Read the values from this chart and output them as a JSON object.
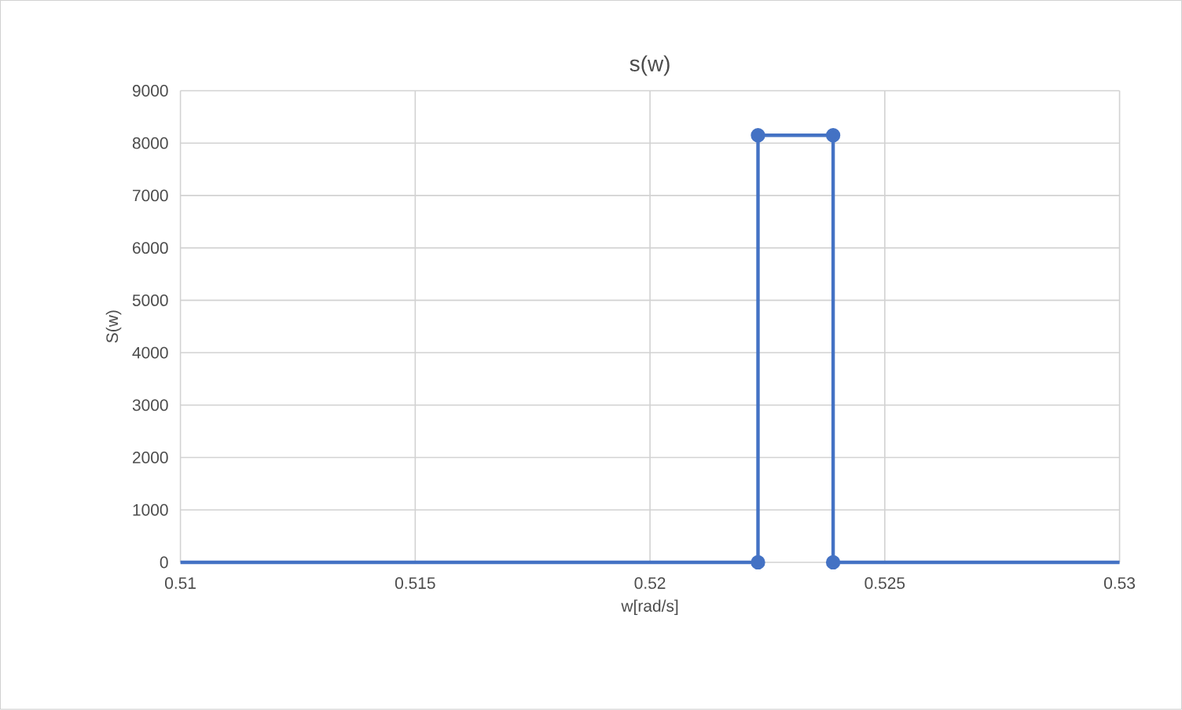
{
  "chart_data": {
    "type": "line",
    "title": "s(w)",
    "xlabel": "w[rad/s]",
    "ylabel": "S(w)",
    "series": [
      {
        "x": [
          0.5223,
          0.5223,
          0.5239,
          0.5239
        ],
        "values": [
          0,
          8150,
          8150,
          0
        ],
        "color": "#4472c4",
        "marker": "circle"
      },
      {
        "x": [
          0.51,
          0.5223,
          0.5231,
          0.5239,
          0.53
        ],
        "values": [
          0,
          0,
          null,
          0,
          0
        ],
        "color": "#4472c4",
        "marker": "none"
      }
    ],
    "xlim": [
      0.51,
      0.53
    ],
    "xticks": [
      0.51,
      0.515,
      0.52,
      0.525,
      0.53
    ],
    "ylim": [
      0,
      9000
    ],
    "yticks": [
      0,
      1000,
      2000,
      3000,
      4000,
      5000,
      6000,
      7000,
      8000,
      9000
    ],
    "grid": true,
    "line_style": "solid"
  }
}
